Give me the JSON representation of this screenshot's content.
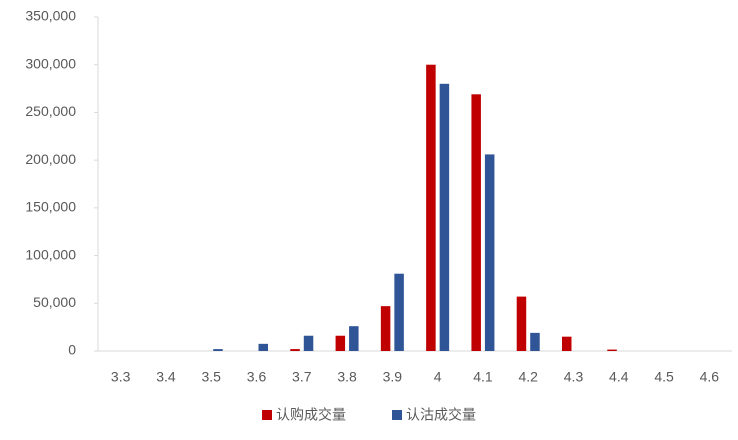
{
  "chart_data": {
    "type": "bar",
    "categories": [
      "3.3",
      "3.4",
      "3.5",
      "3.6",
      "3.7",
      "3.8",
      "3.9",
      "4",
      "4.1",
      "4.2",
      "4.3",
      "4.4",
      "4.5",
      "4.6"
    ],
    "series": [
      {
        "name": "认购成交量",
        "color": "#c00000",
        "values": [
          0,
          0,
          0,
          0,
          2000,
          16000,
          47000,
          300000,
          269000,
          57000,
          15000,
          1500,
          0,
          0
        ]
      },
      {
        "name": "认沽成交量",
        "color": "#2f5597",
        "values": [
          0,
          0,
          2000,
          7500,
          16000,
          26000,
          81000,
          280000,
          206000,
          19000,
          0,
          0,
          0,
          0
        ]
      }
    ],
    "ylim": [
      0,
      350000
    ],
    "yticks": [
      0,
      {
        "value": 50000,
        "label": "50,000"
      },
      {
        "value": 100000,
        "label": "100,000"
      },
      {
        "value": 150000,
        "label": "150,000"
      },
      {
        "value": 200000,
        "label": "200,000"
      },
      {
        "value": 250000,
        "label": "250,000"
      },
      {
        "value": 300000,
        "label": "300,000"
      },
      {
        "value": 350000,
        "label": "350,000"
      }
    ],
    "legend": "bottom"
  }
}
